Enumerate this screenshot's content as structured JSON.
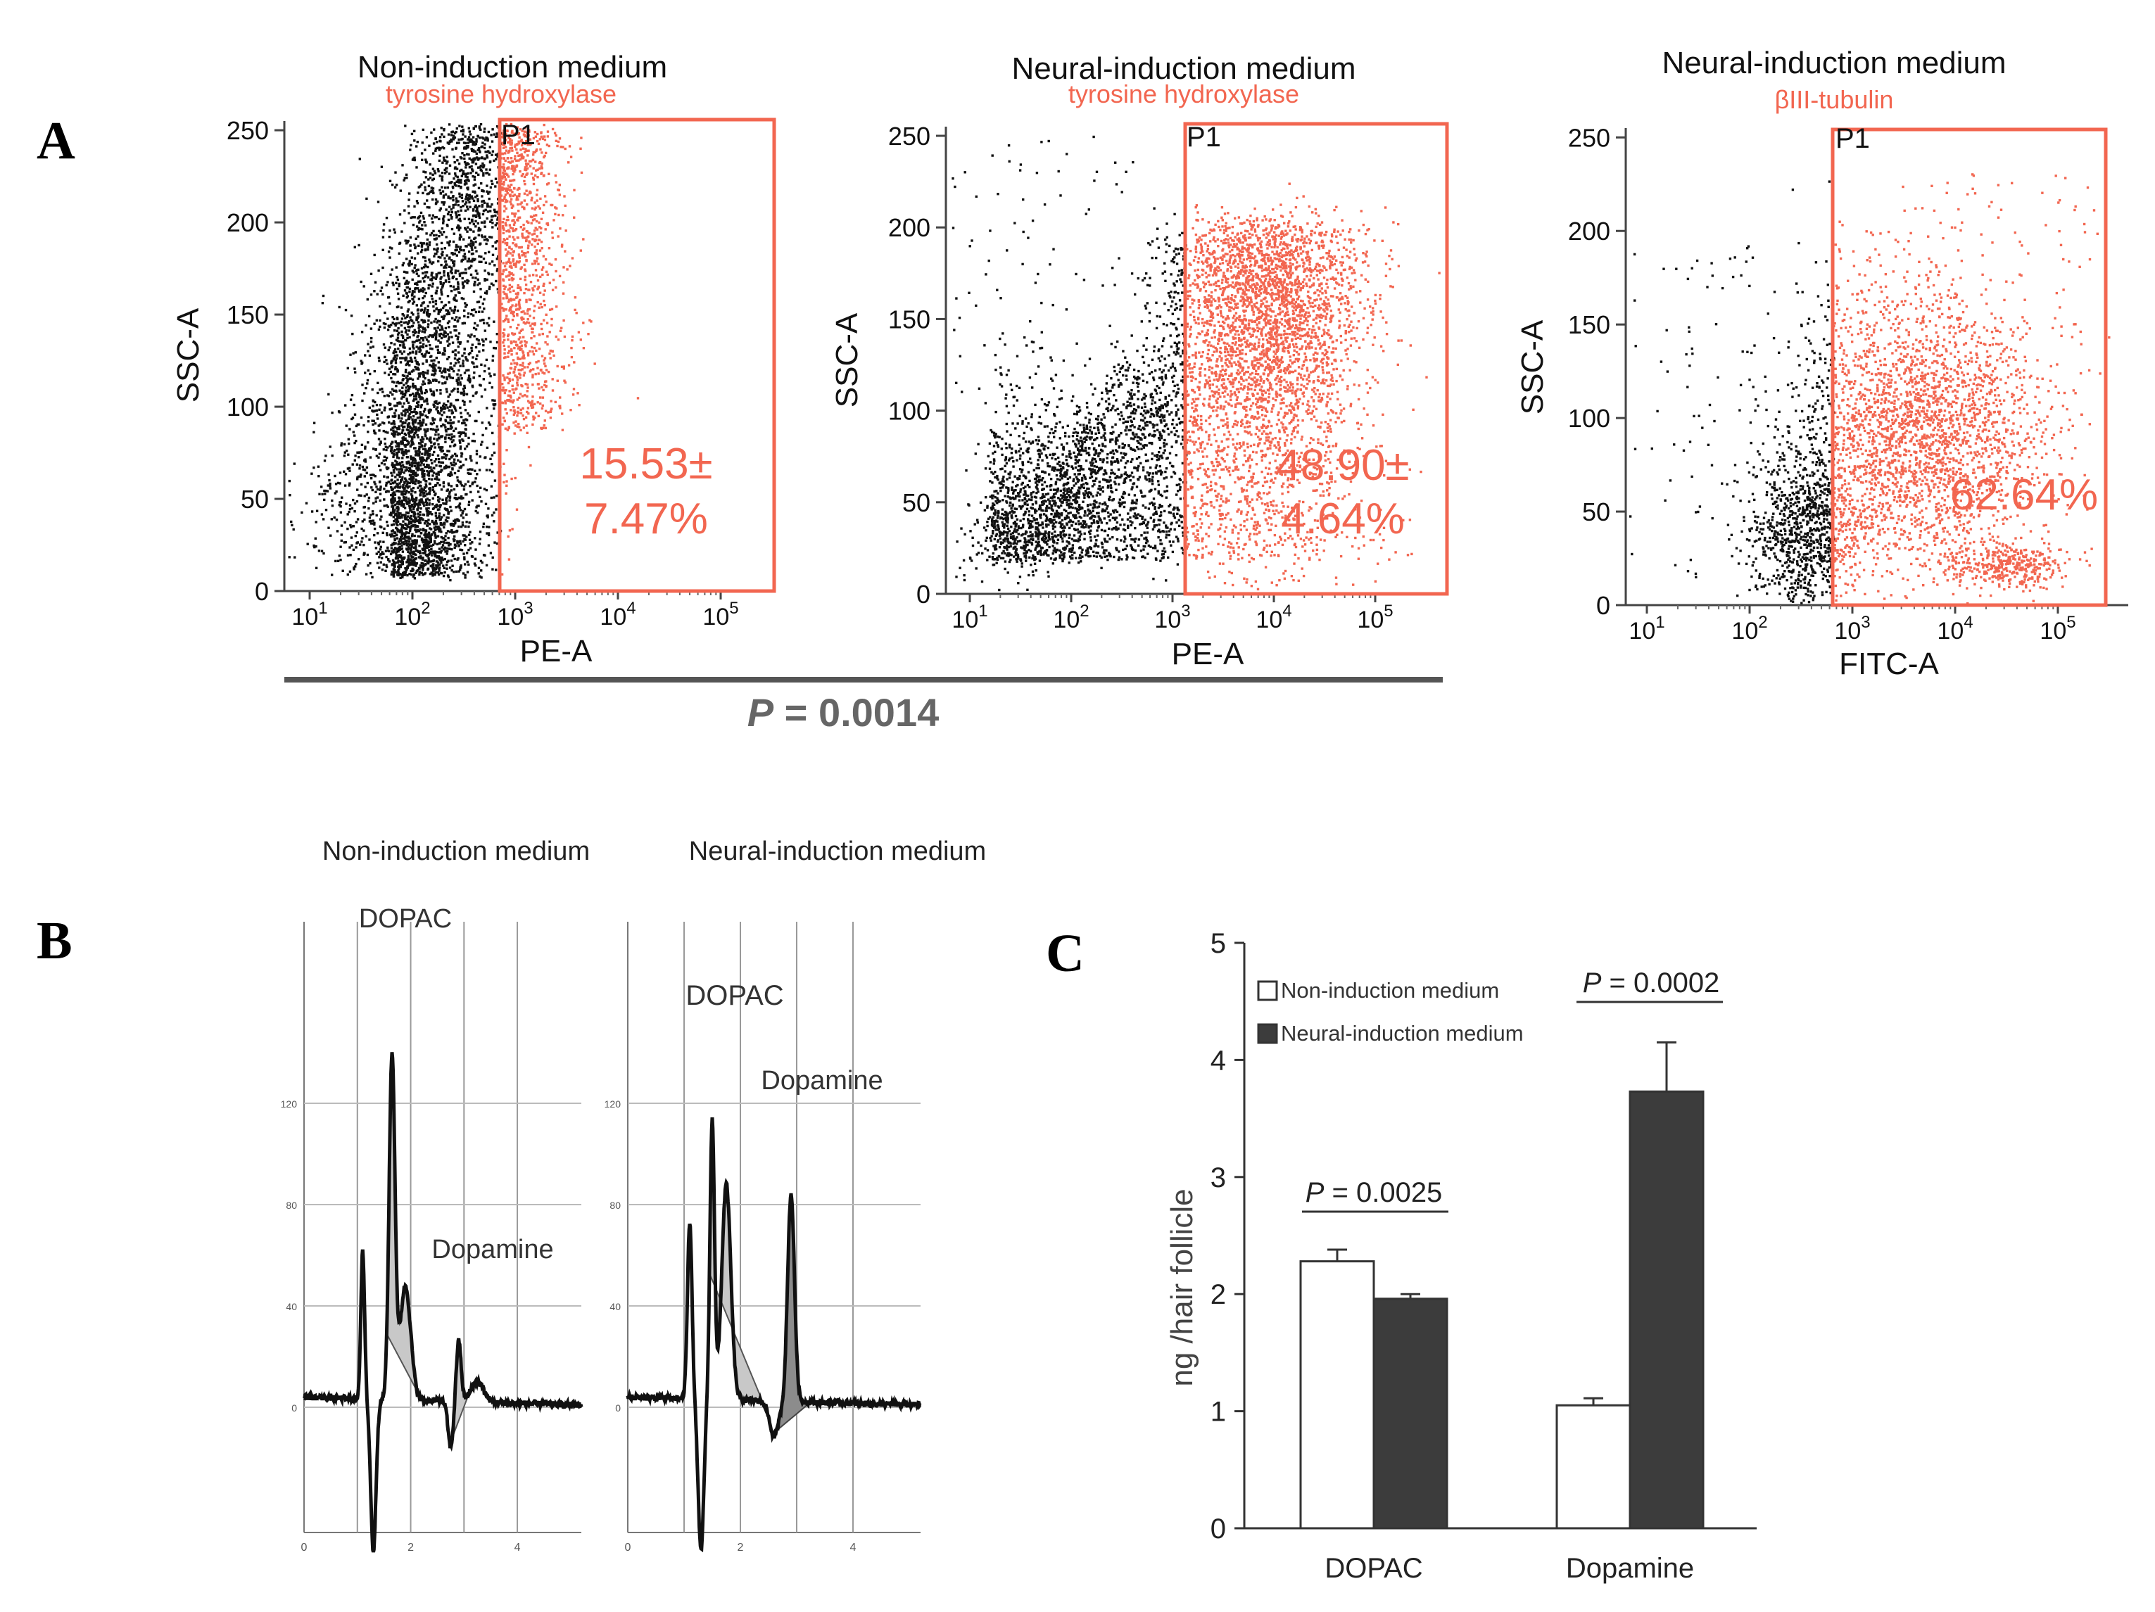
{
  "panel_labels": {
    "a": "A",
    "b": "B",
    "c": "C"
  },
  "colors": {
    "gate": "#f26650",
    "positive_dots": "#f26650",
    "negative_dots": "#111111",
    "bar_dark": "#3c3c3c",
    "bar_light": "#ffffff"
  },
  "panel_a": {
    "flow_plots": [
      {
        "title": "Non-induction medium",
        "marker": "tyrosine hydroxylase",
        "gate_label": "P1",
        "xlabel": "PE-A",
        "ylabel": "SSC-A",
        "percent_line1": "15.53±",
        "percent_line2": "7.47%"
      },
      {
        "title": "Neural-induction medium",
        "marker": "tyrosine hydroxylase",
        "gate_label": "P1",
        "xlabel": "PE-A",
        "ylabel": "SSC-A",
        "percent_line1": "48.90±",
        "percent_line2": "4.64%"
      },
      {
        "title": "Neural-induction medium",
        "marker": "βIII-tubulin",
        "gate_label": "P1",
        "xlabel": "FITC-A",
        "ylabel": "SSC-A",
        "percent_line1": "62.64%",
        "percent_line2": ""
      }
    ],
    "y_ticks": [
      "0",
      "50",
      "100",
      "150",
      "200",
      "250"
    ],
    "x_tick_exponents": [
      "1",
      "2",
      "3",
      "4",
      "5"
    ],
    "x_tick_base": "10",
    "p_symbol": "P",
    "p_rest": " = 0.0014"
  },
  "panel_b": {
    "chromatograms": [
      {
        "title": "Non-induction medium",
        "peak1_label": "DOPAC",
        "peak2_label": "Dopamine"
      },
      {
        "title": "Neural-induction medium",
        "peak1_label": "DOPAC",
        "peak2_label": "Dopamine"
      }
    ],
    "y_ticks": [
      "120",
      "80",
      "40",
      "0"
    ],
    "x_ticks": [
      "0",
      "2",
      "4"
    ]
  },
  "chart_data": {
    "type": "bar",
    "title": "",
    "xlabel": "",
    "ylabel": "ng /hair follicle",
    "ylim": [
      0,
      5
    ],
    "y_ticks": [
      "0",
      "1",
      "2",
      "3",
      "4",
      "5"
    ],
    "categories": [
      "DOPAC",
      "Dopamine"
    ],
    "series": [
      {
        "name": "Non-induction medium",
        "values": [
          2.28,
          1.05
        ],
        "errors": [
          0.1,
          0.06
        ]
      },
      {
        "name": "Neural-induction medium",
        "values": [
          1.96,
          3.73
        ],
        "errors": [
          0.04,
          0.42
        ]
      }
    ],
    "annotations": [
      {
        "category": "DOPAC",
        "p_symbol": "P",
        "p_rest": " = 0.0025"
      },
      {
        "category": "Dopamine",
        "p_symbol": "P",
        "p_rest": " = 0.0002"
      }
    ],
    "legend_position": "top-left"
  }
}
